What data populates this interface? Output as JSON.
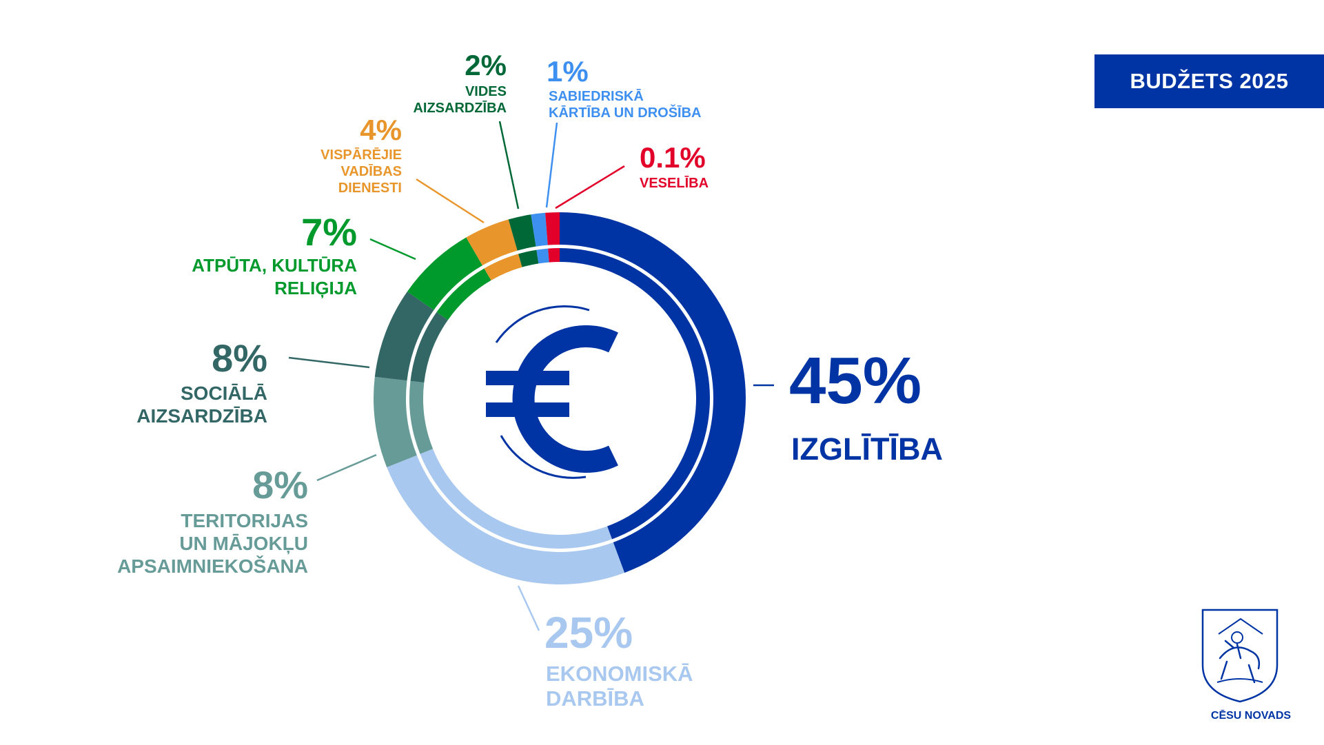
{
  "header": {
    "badge_label": "BUDŽETS 2025"
  },
  "logo": {
    "name": "CĒSU NOVADS",
    "icon": "coat-of-arms-horse-rider"
  },
  "colors": {
    "brand": "#0034a4"
  },
  "chart_data": {
    "type": "pie",
    "variant": "donut",
    "unit": "%",
    "center_icon": "euro-icon",
    "legend": "none",
    "slices": [
      {
        "label": "IZGLĪTĪBA",
        "value": 45,
        "display": "45%",
        "color": "#0034a4"
      },
      {
        "label": "EKONOMISKĀ DARBĪBA",
        "value": 25,
        "display": "25%",
        "color": "#a9c8ef"
      },
      {
        "label": "TERITORIJAS UN MĀJOKĻU APSAIMNIEKOŠANA",
        "value": 8,
        "display": "8%",
        "color": "#669b98"
      },
      {
        "label": "SOCIĀLĀ AIZSARDZĪBA",
        "value": 8,
        "display": "8%",
        "color": "#326766"
      },
      {
        "label": "ATPŪTA, KULTŪRA RELIĢIJA",
        "value": 7,
        "display": "7%",
        "color": "#00992c"
      },
      {
        "label": "VISPĀRĒJIE VADĪBAS DIENESTI",
        "value": 4,
        "display": "4%",
        "color": "#e8962c"
      },
      {
        "label": "VIDES AIZSARDZĪBA",
        "value": 2,
        "display": "2%",
        "color": "#006837"
      },
      {
        "label": "SABIEDRISKĀ KĀRTĪBA UN DROŠĪBA",
        "value": 1,
        "display": "1%",
        "color": "#3d8ff0"
      },
      {
        "label": "VESELĪBA",
        "value": 0.1,
        "display": "0.1%",
        "color": "#e2002a"
      }
    ]
  }
}
